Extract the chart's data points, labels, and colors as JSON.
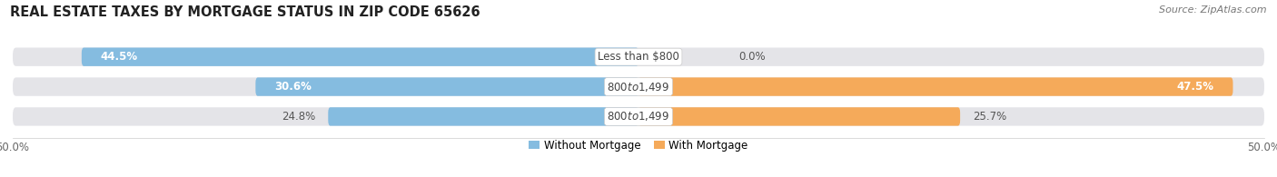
{
  "title": "REAL ESTATE TAXES BY MORTGAGE STATUS IN ZIP CODE 65626",
  "source": "Source: ZipAtlas.com",
  "rows": [
    {
      "label": "Less than $800",
      "without": 44.5,
      "with": 0.0,
      "without_label_inside": true,
      "with_label_inside": false
    },
    {
      "label": "$800 to $1,499",
      "without": 30.6,
      "with": 47.5,
      "without_label_inside": true,
      "with_label_inside": true
    },
    {
      "label": "$800 to $1,499",
      "without": 24.8,
      "with": 25.7,
      "without_label_inside": false,
      "with_label_inside": false
    }
  ],
  "xlim": [
    -50,
    50
  ],
  "color_without": "#85BCE0",
  "color_without_light": "#C5DFF0",
  "color_with": "#F5AA5A",
  "color_with_light": "#FAD5A8",
  "color_bg_bar": "#E4E4E8",
  "bar_height": 0.62,
  "legend_without": "Without Mortgage",
  "legend_with": "With Mortgage",
  "title_fontsize": 10.5,
  "source_fontsize": 8,
  "tick_fontsize": 8.5,
  "label_fontsize": 8.5,
  "value_fontsize": 8.5
}
